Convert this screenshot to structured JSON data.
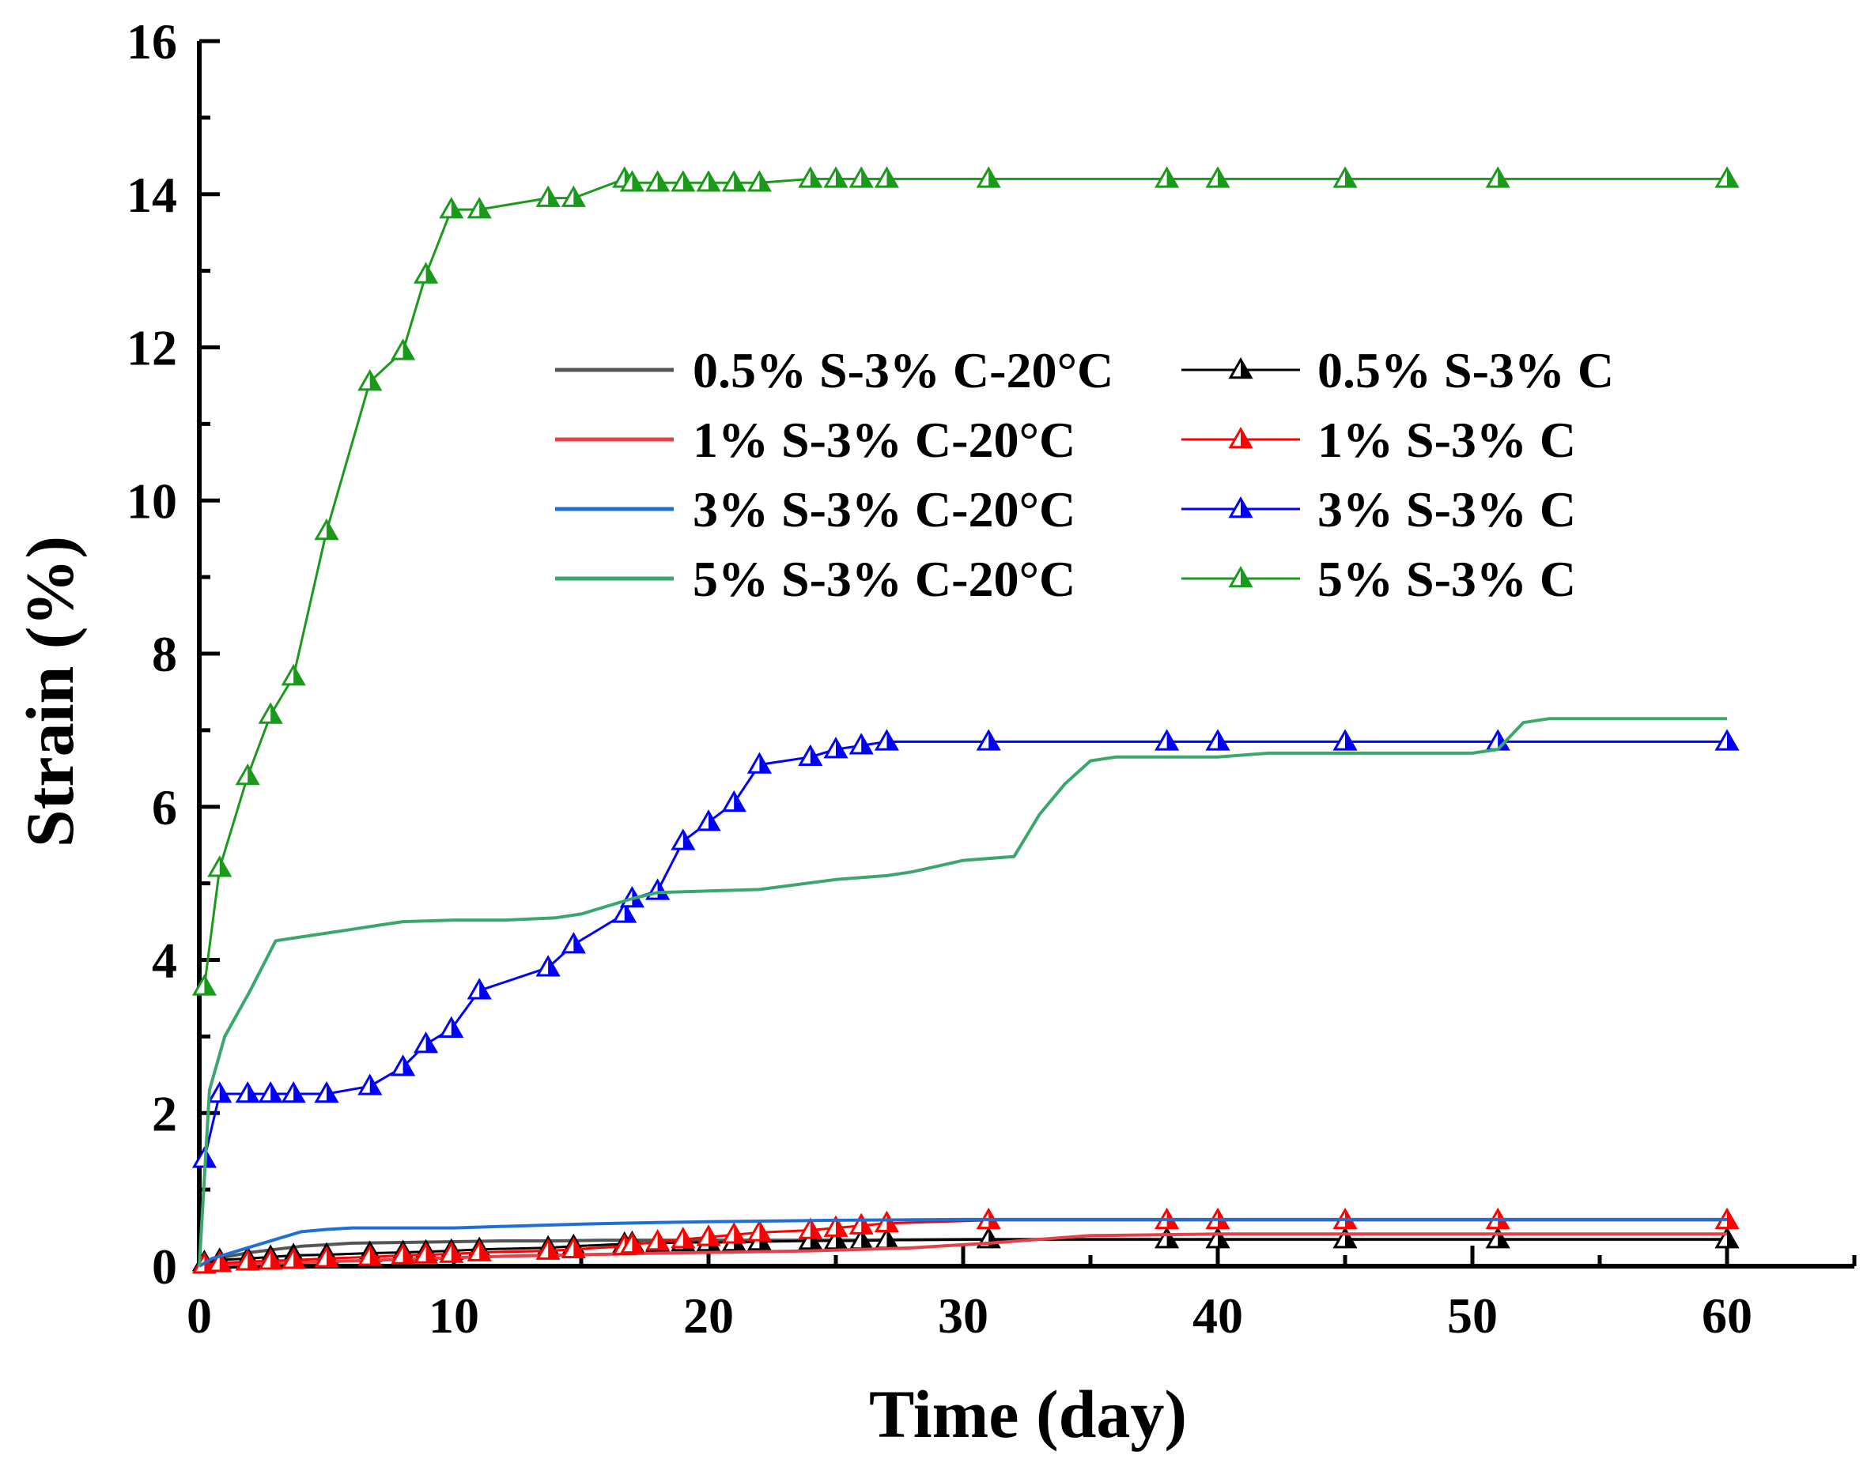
{
  "chart_data": {
    "type": "line",
    "title": "",
    "xlabel": "Time (day)",
    "ylabel": "Strain (%)",
    "xlim": [
      0,
      65
    ],
    "ylim": [
      0,
      16
    ],
    "xticks": [
      0,
      10,
      20,
      30,
      40,
      50,
      60
    ],
    "yticks": [
      0,
      2,
      4,
      6,
      8,
      10,
      12,
      14,
      16
    ],
    "grid": false,
    "legend_position": "center",
    "series": [
      {
        "name": "0.5% S-3% C-20°C",
        "color": "#555555",
        "marker": "none",
        "x": [
          0,
          0.5,
          1,
          2,
          3,
          4,
          5,
          6,
          8,
          10,
          12,
          14,
          16,
          18,
          20,
          25,
          30,
          40,
          50,
          60
        ],
        "y": [
          0,
          0.08,
          0.12,
          0.18,
          0.22,
          0.26,
          0.28,
          0.3,
          0.31,
          0.32,
          0.33,
          0.33,
          0.34,
          0.34,
          0.34,
          0.34,
          0.35,
          0.35,
          0.35,
          0.35
        ]
      },
      {
        "name": "0.5% S-3% C",
        "color": "#000000",
        "marker": "triangle",
        "x": [
          0.2,
          0.8,
          1.9,
          2.8,
          3.7,
          5,
          6.7,
          8,
          8.9,
          9.9,
          11,
          13.7,
          14.7,
          16.7,
          17,
          18,
          19,
          20,
          21,
          22,
          24,
          25,
          26,
          27,
          31,
          38,
          40,
          45,
          51,
          60
        ],
        "y": [
          0.05,
          0.08,
          0.1,
          0.12,
          0.14,
          0.15,
          0.17,
          0.18,
          0.19,
          0.2,
          0.22,
          0.24,
          0.26,
          0.29,
          0.3,
          0.3,
          0.31,
          0.31,
          0.31,
          0.32,
          0.33,
          0.33,
          0.33,
          0.34,
          0.35,
          0.35,
          0.35,
          0.35,
          0.35,
          0.35
        ]
      },
      {
        "name": "1% S-3% C-20°C",
        "color": "#e8404a",
        "marker": "none",
        "x": [
          0,
          1,
          3,
          5,
          8,
          10,
          12,
          15,
          18,
          20,
          24,
          28,
          31,
          35,
          40,
          50,
          60
        ],
        "y": [
          0,
          0.02,
          0.04,
          0.06,
          0.09,
          0.11,
          0.13,
          0.15,
          0.17,
          0.18,
          0.2,
          0.24,
          0.3,
          0.4,
          0.42,
          0.42,
          0.42
        ]
      },
      {
        "name": "1% S-3% C",
        "color": "#ff0000",
        "marker": "triangle",
        "x": [
          0.2,
          0.8,
          1.9,
          2.8,
          3.7,
          5,
          6.7,
          8,
          8.9,
          9.9,
          11,
          13.7,
          14.7,
          16.7,
          17,
          18,
          19,
          20,
          21,
          22,
          24,
          25,
          26,
          27,
          31,
          38,
          40,
          45,
          51,
          60
        ],
        "y": [
          0.02,
          0.04,
          0.06,
          0.07,
          0.08,
          0.1,
          0.12,
          0.14,
          0.15,
          0.16,
          0.18,
          0.2,
          0.22,
          0.26,
          0.28,
          0.32,
          0.35,
          0.38,
          0.41,
          0.44,
          0.47,
          0.5,
          0.53,
          0.56,
          0.6,
          0.6,
          0.6,
          0.6,
          0.6,
          0.6
        ]
      },
      {
        "name": "3% S-3% C-20°C",
        "color": "#1f6fd6",
        "marker": "none",
        "x": [
          0,
          0.5,
          1,
          2,
          3,
          4,
          5,
          6,
          8,
          10,
          12,
          15,
          18,
          20,
          25,
          30,
          40,
          50,
          60
        ],
        "y": [
          0,
          0.1,
          0.15,
          0.25,
          0.35,
          0.45,
          0.48,
          0.5,
          0.5,
          0.5,
          0.52,
          0.55,
          0.57,
          0.58,
          0.6,
          0.61,
          0.61,
          0.61,
          0.61
        ]
      },
      {
        "name": "3% S-3% C",
        "color": "#0000ff",
        "marker": "triangle",
        "x": [
          0.2,
          0.8,
          1.9,
          2.8,
          3.7,
          5,
          6.7,
          8,
          8.9,
          9.9,
          11,
          13.7,
          14.7,
          16.7,
          17,
          18,
          19,
          20,
          21,
          22,
          24,
          25,
          26,
          27,
          31,
          38,
          40,
          45,
          51,
          60
        ],
        "y": [
          1.4,
          2.25,
          2.25,
          2.25,
          2.25,
          2.25,
          2.35,
          2.6,
          2.9,
          3.1,
          3.6,
          3.9,
          4.2,
          4.6,
          4.8,
          4.9,
          5.55,
          5.8,
          6.05,
          6.55,
          6.65,
          6.75,
          6.8,
          6.85,
          6.85,
          6.85,
          6.85,
          6.85,
          6.85,
          6.85
        ]
      },
      {
        "name": "5% S-3% C-20°C",
        "color": "#3aa76d",
        "marker": "none",
        "x": [
          0,
          0.4,
          1,
          2,
          3,
          4,
          5,
          6,
          7,
          8,
          10,
          12,
          14,
          15,
          16,
          17,
          18,
          20,
          22,
          25,
          27,
          28,
          30,
          32,
          33,
          34,
          35,
          36,
          38,
          40,
          42,
          45,
          50,
          51,
          52,
          53,
          60
        ],
        "y": [
          0,
          2.3,
          3,
          3.6,
          4.25,
          4.3,
          4.35,
          4.4,
          4.45,
          4.5,
          4.52,
          4.52,
          4.55,
          4.6,
          4.7,
          4.8,
          4.88,
          4.9,
          4.92,
          5.05,
          5.1,
          5.15,
          5.3,
          5.35,
          5.9,
          6.3,
          6.6,
          6.65,
          6.65,
          6.65,
          6.7,
          6.7,
          6.7,
          6.75,
          7.1,
          7.15,
          7.15
        ]
      },
      {
        "name": "5% S-3% C",
        "color": "#1a9a1a",
        "marker": "triangle",
        "x": [
          0.2,
          0.8,
          1.9,
          2.8,
          3.7,
          5,
          6.7,
          8,
          8.9,
          9.9,
          11,
          13.7,
          14.7,
          16.7,
          17,
          18,
          19,
          20,
          21,
          22,
          24,
          25,
          26,
          27,
          31,
          38,
          40,
          45,
          51,
          60
        ],
        "y": [
          3.65,
          5.2,
          6.4,
          7.2,
          7.7,
          9.6,
          11.55,
          11.95,
          12.95,
          13.8,
          13.8,
          13.95,
          13.95,
          14.2,
          14.15,
          14.15,
          14.15,
          14.15,
          14.15,
          14.15,
          14.2,
          14.2,
          14.2,
          14.2,
          14.2,
          14.2,
          14.2,
          14.2,
          14.2,
          14.2
        ]
      }
    ]
  }
}
